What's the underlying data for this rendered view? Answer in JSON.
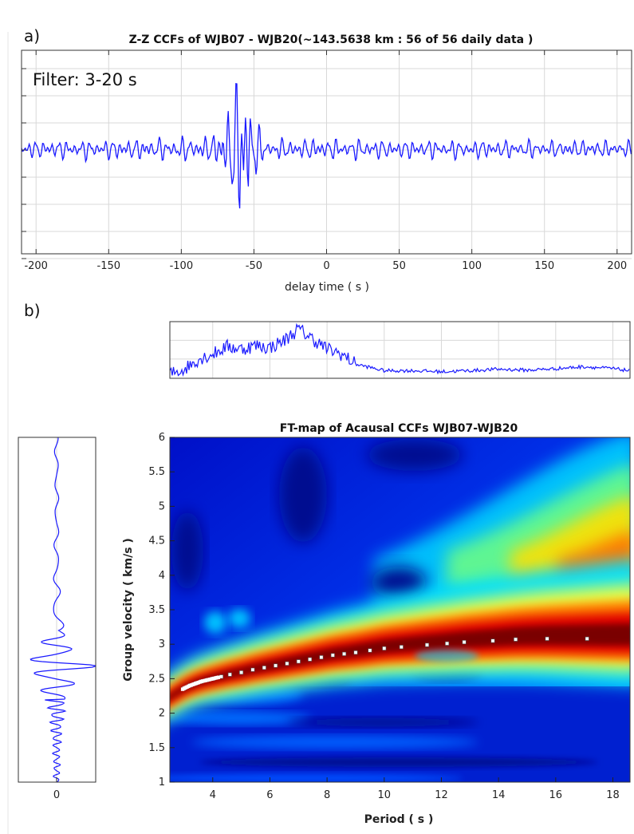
{
  "panel_a": {
    "letter": "a)",
    "filter_label": "Filter: 3-20 s"
  },
  "panel_b": {
    "letter": "b)"
  },
  "chart_data": [
    {
      "type": "line",
      "title": "Z-Z CCFs of WJB07 - WJB20(~143.5638 km : 56 of 56 daily data )",
      "xlabel": "delay time ( s )",
      "ylabel": "",
      "xlim": [
        -210,
        210
      ],
      "xticks": [
        -200,
        -150,
        -100,
        -50,
        0,
        50,
        100,
        150,
        200
      ],
      "grid": true,
      "series": [
        {
          "color": "#1a1aff",
          "description_points": {
            "t": [
              -210,
              -80,
              -75,
              -70,
              -65,
              -60,
              -58,
              -55,
              -52,
              -50,
              -45,
              -40,
              210
            ],
            "amplitude": [
              0.08,
              0.12,
              0.2,
              0.35,
              0.55,
              0.8,
              1.0,
              0.9,
              0.6,
              0.35,
              0.15,
              0.1,
              0.08
            ]
          }
        }
      ]
    },
    {
      "type": "line",
      "title": "",
      "xlabel": "",
      "ylabel": "",
      "xlim": [
        2.5,
        18.6
      ],
      "grid": true,
      "series": [
        {
          "color": "#1a1aff",
          "x": [
            2.5,
            3,
            3.5,
            4,
            4.5,
            5,
            5.5,
            6,
            6.5,
            7,
            7.5,
            8,
            8.5,
            9,
            10,
            11,
            12,
            13,
            14,
            15,
            16,
            17,
            18,
            18.6
          ],
          "y": [
            0.05,
            0.15,
            0.35,
            0.45,
            0.6,
            0.55,
            0.62,
            0.58,
            0.72,
            0.95,
            0.75,
            0.55,
            0.45,
            0.25,
            0.12,
            0.12,
            0.1,
            0.12,
            0.15,
            0.13,
            0.16,
            0.2,
            0.16,
            0.12
          ]
        }
      ]
    },
    {
      "type": "heatmap",
      "title": "FT-map of Acausal CCFs WJB07-WJB20",
      "xlabel": "Period ( s )",
      "ylabel": "Group velocity ( km/s )",
      "xlim": [
        2.5,
        18.6
      ],
      "ylim": [
        1,
        6
      ],
      "xticks": [
        4,
        6,
        8,
        10,
        12,
        14,
        16,
        18
      ],
      "yticks": [
        1,
        1.5,
        2,
        2.5,
        3,
        3.5,
        4,
        4.5,
        5,
        5.5,
        6
      ],
      "colormap": "jet",
      "dispersion_points": {
        "period": [
          3,
          3.2,
          3.4,
          3.6,
          3.8,
          4,
          4.3,
          4.6,
          5,
          5.4,
          5.8,
          6.2,
          6.6,
          7,
          7.4,
          7.8,
          8.2,
          8.6,
          9,
          9.5,
          10,
          10.6,
          11.5,
          12.2,
          12.8,
          13.8,
          14.6,
          15.7,
          17.1
        ],
        "velocity": [
          2.36,
          2.4,
          2.43,
          2.46,
          2.48,
          2.5,
          2.53,
          2.56,
          2.59,
          2.63,
          2.66,
          2.69,
          2.72,
          2.75,
          2.78,
          2.81,
          2.84,
          2.86,
          2.88,
          2.91,
          2.94,
          2.96,
          2.99,
          3.01,
          3.03,
          3.05,
          3.07,
          3.08,
          3.08
        ]
      }
    },
    {
      "type": "line",
      "title": "",
      "xlabel": "",
      "ylabel": "",
      "xticks": [
        0
      ],
      "orientation": "vertical",
      "ylim": [
        1,
        6
      ],
      "series": [
        {
          "color": "#1a1aff",
          "envelope": {
            "velocity": [
              1,
              1.5,
              2,
              2.3,
              2.5,
              2.7,
              2.9,
              3.2,
              3.6,
              4.2,
              5,
              6
            ],
            "amplitude": [
              0.08,
              0.1,
              0.2,
              0.35,
              0.6,
              1.0,
              0.5,
              0.2,
              0.1,
              0.07,
              0.05,
              0.05
            ]
          }
        }
      ]
    }
  ]
}
